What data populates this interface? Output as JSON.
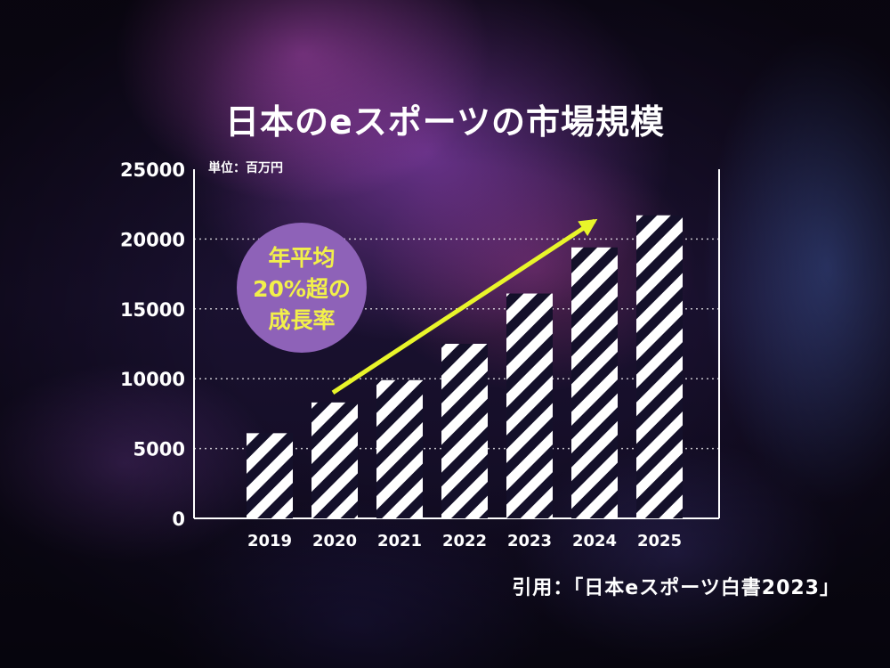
{
  "chart_data": {
    "type": "bar",
    "title": "日本のeスポーツの市場規模",
    "unit_label": "単位：百万円",
    "categories": [
      "2019",
      "2020",
      "2021",
      "2022",
      "2023",
      "2024",
      "2025"
    ],
    "values": [
      6100,
      8300,
      9900,
      12500,
      16100,
      19400,
      21700
    ],
    "ylim": [
      0,
      25000
    ],
    "yticks": [
      "0",
      "5000",
      "10000",
      "15000",
      "20000",
      "25000"
    ],
    "grid": "horizontal-dotted",
    "annotation": {
      "lines": [
        "年平均",
        "20%超の",
        "成長率"
      ],
      "fill_color": "#8e62b8",
      "text_color": "#f2f04a"
    },
    "trend_arrow": {
      "from": {
        "category": "2020",
        "value": 9000
      },
      "to": {
        "category": "2024",
        "value": 21300
      },
      "color": "#e9f52a"
    },
    "bar_style": "diagonal-stripes",
    "bar_colors": [
      "#ffffff",
      "#14102a"
    ]
  },
  "source": "引用：「日本eスポーツ白書2023」"
}
